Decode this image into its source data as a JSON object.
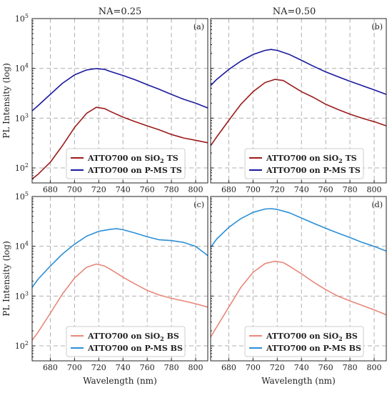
{
  "column_titles": [
    "NA=0.25",
    "NA=0.50"
  ],
  "chart_data": [
    {
      "type": "line",
      "panel": "(a)",
      "xlabel": "",
      "ylabel": "PL Intensity (log)",
      "xlim": [
        665,
        810
      ],
      "ylim": [
        50,
        100000
      ],
      "yscale": "log",
      "xticks": [
        680,
        700,
        720,
        740,
        760,
        780,
        800
      ],
      "grid": true,
      "legend_position": "lower-center",
      "series": [
        {
          "name": "ATTO700 on SiO",
          "sub": "2",
          "suffix": " TS",
          "color": "#9b1c1c",
          "x": [
            665,
            670,
            680,
            690,
            700,
            710,
            718,
            725,
            730,
            740,
            750,
            760,
            770,
            780,
            790,
            800,
            810
          ],
          "y": [
            60,
            75,
            130,
            280,
            650,
            1250,
            1650,
            1550,
            1350,
            1050,
            850,
            700,
            580,
            470,
            400,
            360,
            320
          ]
        },
        {
          "name": "ATTO700 on P-MS",
          "suffix": " TS",
          "color": "#1a1a9e",
          "x": [
            665,
            670,
            680,
            690,
            700,
            710,
            718,
            725,
            730,
            740,
            750,
            760,
            770,
            780,
            790,
            800,
            810
          ],
          "y": [
            1400,
            1800,
            3000,
            5000,
            7400,
            9300,
            9900,
            9500,
            8600,
            7200,
            5900,
            4700,
            3800,
            3000,
            2400,
            2000,
            1600
          ]
        }
      ]
    },
    {
      "type": "line",
      "panel": "(b)",
      "xlabel": "",
      "ylabel": "",
      "xlim": [
        665,
        810
      ],
      "ylim": [
        50,
        100000
      ],
      "yscale": "log",
      "xticks": [
        680,
        700,
        720,
        740,
        760,
        780,
        800
      ],
      "grid": true,
      "legend_position": "lower-center",
      "series": [
        {
          "name": "ATTO700 on SiO",
          "sub": "2",
          "suffix": " TS",
          "color": "#9b1c1c",
          "x": [
            665,
            670,
            680,
            690,
            700,
            710,
            718,
            725,
            730,
            740,
            750,
            760,
            770,
            780,
            790,
            800,
            810
          ],
          "y": [
            280,
            420,
            900,
            1900,
            3400,
            5200,
            6000,
            5700,
            4800,
            3400,
            2600,
            1900,
            1500,
            1200,
            1000,
            850,
            700
          ]
        },
        {
          "name": "ATTO700 on P-MS",
          "suffix": " TS",
          "color": "#1a1a9e",
          "x": [
            665,
            670,
            680,
            690,
            700,
            710,
            715,
            720,
            730,
            740,
            750,
            760,
            770,
            780,
            790,
            800,
            810
          ],
          "y": [
            4500,
            6000,
            9500,
            14000,
            19000,
            23000,
            24000,
            23000,
            19000,
            14500,
            11000,
            8500,
            6800,
            5500,
            4500,
            3700,
            3000
          ]
        }
      ]
    },
    {
      "type": "line",
      "panel": "(c)",
      "xlabel": "Wavelength (nm)",
      "ylabel": "PL Intensity (log)",
      "xlim": [
        665,
        810
      ],
      "ylim": [
        50,
        100000
      ],
      "yscale": "log",
      "xticks": [
        680,
        700,
        720,
        740,
        760,
        780,
        800
      ],
      "grid": true,
      "legend_position": "lower-center",
      "series": [
        {
          "name": "ATTO700 on SiO",
          "sub": "2",
          "suffix": " BS",
          "color": "#e8877a",
          "x": [
            665,
            670,
            680,
            690,
            700,
            710,
            718,
            725,
            730,
            740,
            750,
            760,
            770,
            780,
            790,
            800,
            810
          ],
          "y": [
            130,
            190,
            450,
            1100,
            2300,
            3800,
            4400,
            4000,
            3400,
            2400,
            1750,
            1300,
            1050,
            900,
            800,
            700,
            600
          ]
        },
        {
          "name": "ATTO700 on P-MS",
          "suffix": " BS",
          "color": "#2b8fd6",
          "x": [
            665,
            670,
            680,
            690,
            700,
            710,
            720,
            730,
            735,
            740,
            750,
            760,
            770,
            780,
            790,
            800,
            810
          ],
          "y": [
            1500,
            2200,
            4000,
            7000,
            11000,
            16000,
            20000,
            22000,
            22500,
            21500,
            18500,
            15500,
            13500,
            13000,
            12000,
            10000,
            6500
          ]
        }
      ]
    },
    {
      "type": "line",
      "panel": "(d)",
      "xlabel": "Wavelength (nm)",
      "ylabel": "",
      "xlim": [
        665,
        810
      ],
      "ylim": [
        50,
        100000
      ],
      "yscale": "log",
      "xticks": [
        680,
        700,
        720,
        740,
        760,
        780,
        800
      ],
      "grid": true,
      "legend_position": "lower-center",
      "series": [
        {
          "name": "ATTO700 on SiO",
          "sub": "2",
          "suffix": " BS",
          "color": "#e8877a",
          "x": [
            665,
            670,
            680,
            690,
            700,
            710,
            718,
            725,
            730,
            740,
            750,
            760,
            770,
            780,
            790,
            800,
            810
          ],
          "y": [
            150,
            240,
            600,
            1500,
            3000,
            4500,
            5000,
            4700,
            4000,
            2800,
            1900,
            1350,
            1000,
            800,
            650,
            530,
            420
          ]
        },
        {
          "name": "ATTO700 on P-MS",
          "suffix": " BS",
          "color": "#2b8fd6",
          "x": [
            665,
            670,
            680,
            690,
            700,
            710,
            715,
            720,
            730,
            740,
            750,
            760,
            770,
            780,
            790,
            800,
            810
          ],
          "y": [
            9500,
            14000,
            24000,
            36000,
            48000,
            56000,
            57000,
            55000,
            47000,
            37000,
            29000,
            23000,
            18500,
            15000,
            12000,
            10000,
            8000
          ]
        }
      ]
    }
  ],
  "y_tick_labels": [
    {
      "base": "10",
      "exp": "2"
    },
    {
      "base": "10",
      "exp": "3"
    },
    {
      "base": "10",
      "exp": "4"
    },
    {
      "base": "10",
      "exp": "5"
    }
  ]
}
